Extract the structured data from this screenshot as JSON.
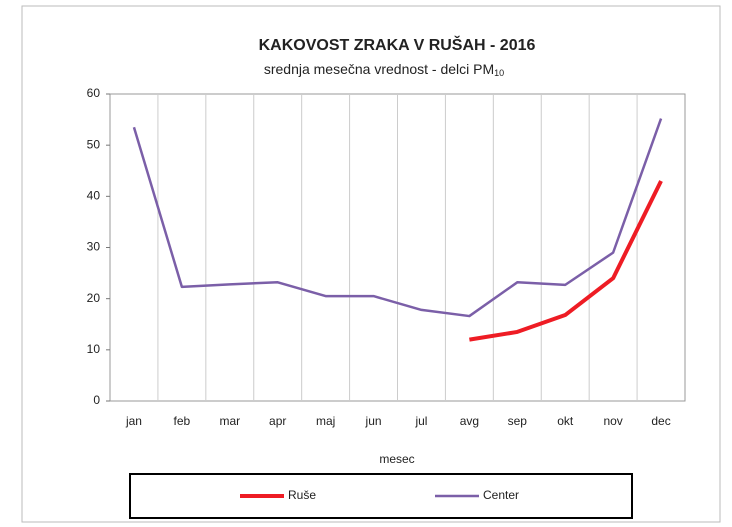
{
  "chart_data": {
    "type": "line",
    "title": "KAKOVOST ZRAKA V RUŠAH - 2016",
    "subtitle": "srednja mesečna vrednost - delci PM",
    "subtitle_subscript": "10",
    "x_label": "mesec",
    "categories": [
      "jan",
      "feb",
      "mar",
      "apr",
      "maj",
      "jun",
      "jul",
      "avg",
      "sep",
      "okt",
      "nov",
      "dec"
    ],
    "series": [
      {
        "name": "Ruše",
        "color": "#ee1c24",
        "values": [
          null,
          null,
          null,
          null,
          null,
          null,
          null,
          12,
          13.5,
          16.8,
          24,
          43
        ]
      },
      {
        "name": "Center",
        "color": "#7b5fa8",
        "values": [
          53.5,
          22.3,
          22.8,
          23.2,
          20.5,
          20.5,
          17.8,
          16.6,
          23.2,
          22.7,
          29,
          55.2
        ]
      }
    ],
    "ylim": [
      0,
      60
    ],
    "yticks": [
      0,
      10,
      20,
      30,
      40,
      50,
      60
    ],
    "grid": "x",
    "legend": "bottom"
  }
}
